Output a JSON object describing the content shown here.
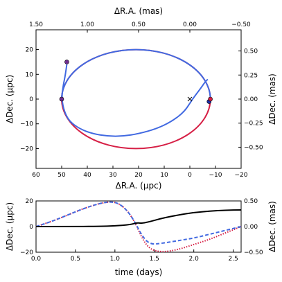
{
  "chart_data": [
    {
      "type": "line",
      "panel": "top",
      "xlabel": "ΔR.A. (μpc)",
      "ylabel": "ΔDec. (μpc)",
      "x2label": "ΔR.A. (mas)",
      "y2label": "ΔDec. (mas)",
      "xlim": [
        60,
        -20
      ],
      "ylim": [
        -28,
        28
      ],
      "x2lim": [
        1.5,
        -0.5
      ],
      "y2lim": [
        -0.72,
        0.72
      ],
      "xticks": [
        "60",
        "50",
        "40",
        "30",
        "20",
        "10",
        "0",
        "−10",
        "−20"
      ],
      "yticks": [
        "20",
        "10",
        "0",
        "−10",
        "−20"
      ],
      "x2ticks": [
        "1.50",
        "1.00",
        "0.50",
        "0.00",
        "−0.50"
      ],
      "y2ticks": [
        "0.50",
        "0.25",
        "0.00",
        "−0.25",
        "−0.50"
      ],
      "colors": {
        "red": "#d61f45",
        "blue": "#4169e1",
        "purple": "#6f2c8e",
        "navy": "#1c2fa8"
      },
      "ellipse": {
        "center": [
          21,
          0
        ],
        "semi_x": 29,
        "semi_y": 20
      },
      "blue_spiral_points": [
        [
          48,
          14
        ],
        [
          48.5,
          10
        ],
        [
          49.5,
          5
        ],
        [
          50,
          0
        ],
        [
          49,
          -5
        ],
        [
          47,
          -9
        ],
        [
          43,
          -12
        ],
        [
          38,
          -14
        ],
        [
          32,
          -15
        ],
        [
          26,
          -15
        ],
        [
          20,
          -14
        ],
        [
          13,
          -12
        ],
        [
          7,
          -9
        ],
        [
          2,
          -5
        ],
        [
          -1,
          0
        ],
        [
          -4,
          4
        ],
        [
          -6,
          7
        ],
        [
          -7,
          8
        ]
      ],
      "markers": [
        {
          "x": 48,
          "y": 15,
          "color": "purple"
        },
        {
          "x": 50,
          "y": 0,
          "color": "purple"
        },
        {
          "x": -7.5,
          "y": -1,
          "color": "navy"
        },
        {
          "x": -8,
          "y": 0,
          "color": "red"
        }
      ],
      "cross_marker": {
        "x": 0,
        "y": 0
      }
    },
    {
      "type": "line",
      "panel": "bottom",
      "xlabel": "time (days)",
      "ylabel": "ΔDec. (μpc)",
      "y2label": "ΔDec. (mas)",
      "xlim": [
        0,
        2.6
      ],
      "ylim": [
        -20,
        20
      ],
      "y2lim": [
        -0.5,
        0.5
      ],
      "xticks": [
        "0.0",
        "0.5",
        "1.0",
        "1.5",
        "2.0",
        "2.5"
      ],
      "yticks": [
        "20",
        "0",
        "−20"
      ],
      "y2ticks": [
        "0.50",
        "0.00",
        "−0.50"
      ],
      "series": [
        {
          "style": "solid",
          "color": "#000000",
          "x": [
            0,
            0.4,
            0.8,
            1.0,
            1.2,
            1.28,
            1.34,
            1.45,
            1.6,
            1.8,
            2.0,
            2.2,
            2.4,
            2.6
          ],
          "y": [
            0,
            0,
            0.2,
            0.5,
            1.5,
            3,
            2.5,
            4,
            6.5,
            9,
            11,
            12,
            12.8,
            13
          ]
        },
        {
          "style": "dashed",
          "color": "#4169e1",
          "x": [
            0,
            0.2,
            0.4,
            0.6,
            0.8,
            0.95,
            1.05,
            1.15,
            1.25,
            1.35,
            1.45,
            1.6,
            1.8,
            2.0,
            2.2,
            2.4,
            2.6
          ],
          "y": [
            0,
            4,
            9,
            14,
            18,
            19.5,
            18,
            13,
            4,
            -8,
            -14,
            -13,
            -11,
            -9,
            -6,
            -3,
            0
          ]
        },
        {
          "style": "dotted",
          "color": "#d61f45",
          "x": [
            0,
            0.2,
            0.4,
            0.6,
            0.8,
            0.95,
            1.05,
            1.15,
            1.25,
            1.35,
            1.45,
            1.6,
            1.8,
            2.0,
            2.2,
            2.4,
            2.6
          ],
          "y": [
            0,
            4,
            9,
            14,
            18,
            19.5,
            18,
            13,
            4,
            -10,
            -18,
            -20,
            -18,
            -14,
            -10,
            -5,
            0
          ]
        }
      ]
    }
  ]
}
